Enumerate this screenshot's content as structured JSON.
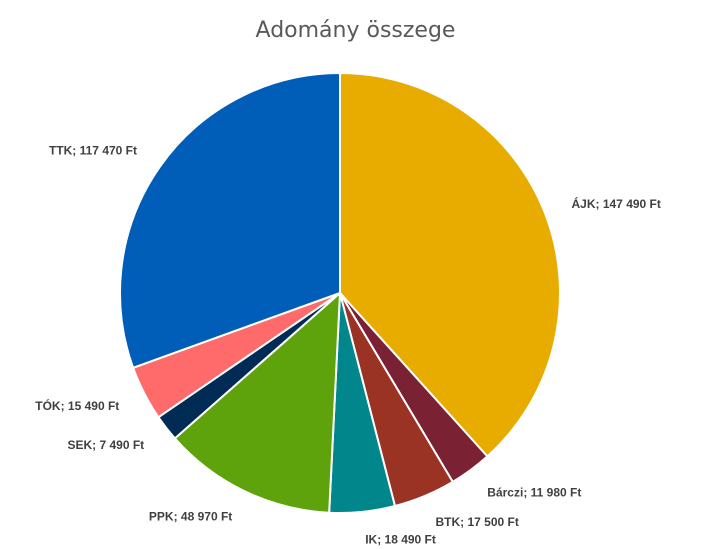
{
  "chart_data": {
    "type": "pie",
    "title": "Adomány összege",
    "slices": [
      {
        "name": "ÁJK",
        "value": 147490,
        "label": "ÁJK; 147 490 Ft",
        "color": "#E8AB00"
      },
      {
        "name": "Bárczi",
        "value": 11980,
        "label": "Bárczi; 11 980 Ft",
        "color": "#7A2233"
      },
      {
        "name": "BTK",
        "value": 17500,
        "label": "BTK; 17 500 Ft",
        "color": "#9A3324"
      },
      {
        "name": "IK",
        "value": 18490,
        "label": "IK; 18 490 Ft",
        "color": "#00868B"
      },
      {
        "name": "PPK",
        "value": 48970,
        "label": "PPK; 48 970 Ft",
        "color": "#5FA30C"
      },
      {
        "name": "SEK",
        "value": 7490,
        "label": "SEK; 7 490 Ft",
        "color": "#002B54"
      },
      {
        "name": "TÓK",
        "value": 15490,
        "label": "TÓK; 15 490 Ft",
        "color": "#FF6B6B"
      },
      {
        "name": "TTK",
        "value": 117470,
        "label": "TTK; 117 470 Ft",
        "color": "#005EB8"
      }
    ],
    "legend": "none"
  }
}
